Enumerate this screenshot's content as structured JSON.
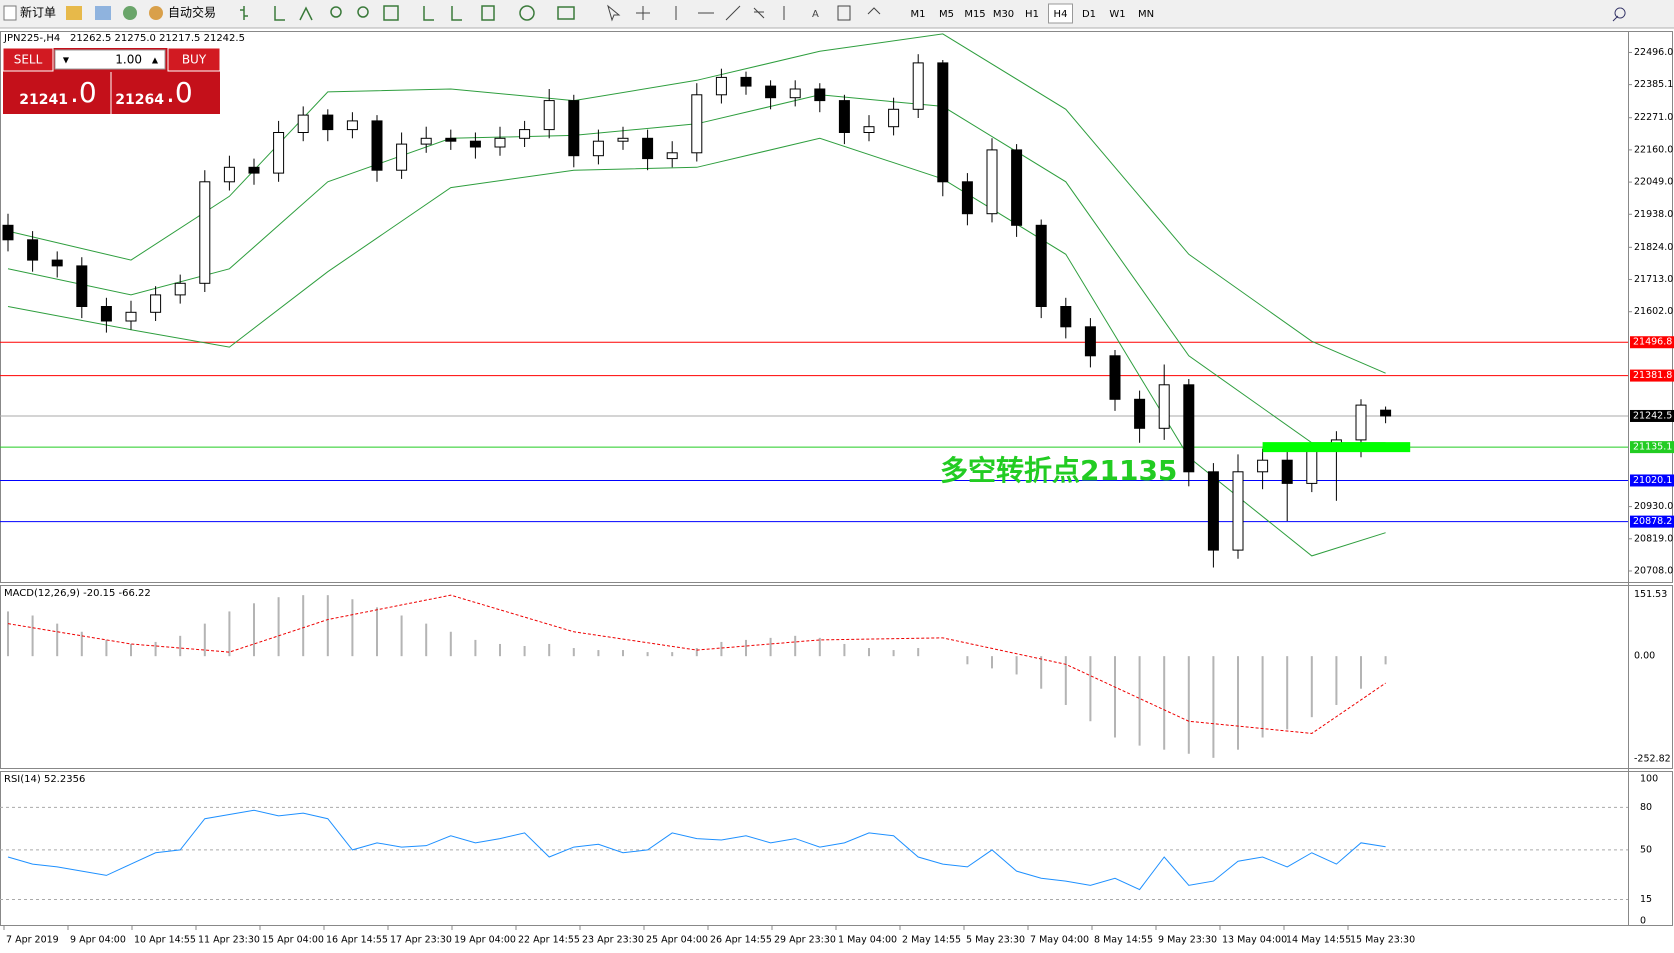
{
  "toolbar": {
    "new_order": "新订单",
    "auto_trading": "自动交易",
    "timeframes": [
      "M1",
      "M5",
      "M15",
      "M30",
      "H1",
      "H4",
      "D1",
      "W1",
      "MN"
    ],
    "active": "H4"
  },
  "trade_panel": {
    "sell": "SELL",
    "buy": "BUY",
    "lots": "1.00",
    "bid_big": "21241",
    "bid_small": ".0",
    "ask_big": "21264",
    "ask_small": ".0"
  },
  "chart_data": {
    "type": "candlestick",
    "symbol": "JPN225-,H4",
    "ohlc_label": "21262.5 21275.0 21217.5 21242.5",
    "open": [
      21900,
      21850,
      21780,
      21760,
      21620,
      21570,
      21600,
      21660,
      21700,
      22050,
      22100,
      22080,
      22220,
      22280,
      22230,
      22260,
      22090,
      22180,
      22200,
      22190,
      22170,
      22200,
      22230,
      22330,
      22140,
      22190,
      22200,
      22130,
      22150,
      22350,
      22410,
      22380,
      22340,
      22370,
      22330,
      22220,
      22240,
      22300,
      22460,
      22050,
      21940,
      22160,
      21900,
      21620,
      21550,
      21450,
      21300,
      21200,
      21350,
      21050,
      20780,
      21050,
      21090,
      21010,
      21120,
      21160,
      21262.5
    ],
    "high": [
      21940,
      21880,
      21810,
      21790,
      21650,
      21640,
      21690,
      21730,
      22090,
      22140,
      22130,
      22260,
      22310,
      22300,
      22290,
      22280,
      22220,
      22240,
      22230,
      22220,
      22240,
      22260,
      22370,
      22350,
      22230,
      22240,
      22230,
      22190,
      22390,
      22440,
      22430,
      22400,
      22400,
      22390,
      22350,
      22280,
      22340,
      22490,
      22470,
      22080,
      22200,
      22180,
      21920,
      21650,
      21580,
      21470,
      21330,
      21420,
      21370,
      21080,
      21110,
      21130,
      21120,
      21150,
      21190,
      21300,
      21275
    ],
    "low": [
      21810,
      21740,
      21720,
      21580,
      21530,
      21540,
      21570,
      21630,
      21670,
      22020,
      22040,
      22050,
      22190,
      22190,
      22200,
      22050,
      22060,
      22150,
      22160,
      22130,
      22140,
      22170,
      22200,
      22100,
      22110,
      22160,
      22090,
      22100,
      22120,
      22320,
      22350,
      22300,
      22310,
      22290,
      22180,
      22190,
      22210,
      22270,
      22000,
      21900,
      21910,
      21860,
      21580,
      21510,
      21410,
      21260,
      21150,
      21160,
      21000,
      20720,
      20750,
      20990,
      20880,
      20980,
      20950,
      21100,
      21217.5
    ],
    "close": [
      21850,
      21780,
      21760,
      21620,
      21570,
      21600,
      21660,
      21700,
      22050,
      22100,
      22080,
      22220,
      22280,
      22230,
      22260,
      22090,
      22180,
      22200,
      22190,
      22170,
      22200,
      22230,
      22330,
      22140,
      22190,
      22200,
      22130,
      22150,
      22350,
      22410,
      22380,
      22340,
      22370,
      22330,
      22220,
      22240,
      22300,
      22460,
      22050,
      21940,
      22160,
      21900,
      21620,
      21550,
      21450,
      21300,
      21200,
      21350,
      21050,
      20780,
      21050,
      21090,
      21010,
      21120,
      21160,
      21280,
      21242.5
    ],
    "bands": {
      "x": [
        0,
        5,
        9,
        13,
        18,
        23,
        28,
        33,
        38,
        43,
        48,
        53,
        56
      ],
      "color": "#2e9e3e",
      "upper": [
        21880,
        21780,
        22000,
        22360,
        22370,
        22330,
        22400,
        22500,
        22560,
        22300,
        21800,
        21500,
        21390
      ],
      "middle": [
        21750,
        21660,
        21750,
        22050,
        22200,
        22210,
        22250,
        22350,
        22310,
        22050,
        21450,
        21150,
        21150
      ],
      "lower": [
        21620,
        21540,
        21480,
        21740,
        22030,
        22090,
        22100,
        22200,
        22060,
        21800,
        21100,
        20760,
        20840
      ]
    },
    "ylim": [
      20670,
      22570
    ],
    "yticks": [
      {
        "value": 22496,
        "label": "22496.0"
      },
      22385.1,
      {
        "value": 22271,
        "label": "22271.0"
      },
      {
        "value": 22160,
        "label": "22160.0"
      },
      {
        "value": 22049,
        "label": "22049.0"
      },
      {
        "value": 21938,
        "label": "21938.0"
      },
      {
        "value": 21824,
        "label": "21824.0"
      },
      {
        "value": 21713,
        "label": "21713.0"
      },
      {
        "value": 21602,
        "label": "21602.0"
      },
      {
        "value": 20930,
        "label": "20930.0"
      },
      {
        "value": 20819,
        "label": "20819.0"
      },
      {
        "value": 20708,
        "label": "20708.0"
      }
    ],
    "levels": [
      {
        "value": 21496.8,
        "color": "#ff0000"
      },
      {
        "value": 21381.8,
        "color": "#ff0000"
      },
      {
        "value": 21135.1,
        "color": "#22cc22"
      },
      {
        "value": 21020.1,
        "color": "#0000ff"
      },
      {
        "value": 20878.2,
        "color": "#0000ff"
      }
    ],
    "current": 21242.5,
    "annotation": "多空转折点21135",
    "x_labels": [
      "7 Apr 2019",
      "9 Apr 04:00",
      "10 Apr 14:55",
      "11 Apr 23:30",
      "15 Apr 04:00",
      "16 Apr 14:55",
      "17 Apr 23:30",
      "19 Apr 04:00",
      "22 Apr 14:55",
      "23 Apr 23:30",
      "25 Apr 04:00",
      "26 Apr 14:55",
      "29 Apr 23:30",
      "1 May 04:00",
      "2 May 14:55",
      "5 May 23:30",
      "7 May 04:00",
      "8 May 14:55",
      "9 May 23:30",
      "13 May 04:00",
      "14 May 14:55",
      "15 May 23:30"
    ],
    "macd": {
      "title": "MACD(12,26,9) -20.15 -66.22",
      "ylim": [
        -275,
        175
      ],
      "yticks": [
        151.53,
        {
          "value": 0,
          "label": "0.00"
        },
        -252.82
      ],
      "histogram": [
        110,
        100,
        80,
        60,
        40,
        30,
        35,
        50,
        80,
        110,
        130,
        145,
        150,
        150,
        140,
        120,
        100,
        80,
        60,
        40,
        30,
        25,
        30,
        20,
        15,
        15,
        10,
        10,
        20,
        35,
        40,
        45,
        50,
        45,
        30,
        20,
        15,
        20,
        0,
        -20,
        -30,
        -45,
        -80,
        -120,
        -160,
        -200,
        -220,
        -230,
        -240,
        -250,
        -230,
        -200,
        -180,
        -150,
        -120,
        -80,
        -20.15
      ],
      "signal_x": [
        0,
        5,
        9,
        13,
        18,
        23,
        28,
        33,
        38,
        43,
        48,
        53,
        56
      ],
      "signal": [
        80,
        30,
        10,
        90,
        150,
        60,
        15,
        40,
        45,
        -20,
        -160,
        -190,
        -66.22
      ]
    },
    "rsi": {
      "title": "RSI(14) 52.2356",
      "ylim": [
        -3,
        105
      ],
      "yticks": [
        100,
        80,
        50,
        15,
        0
      ],
      "levels": [
        80,
        50,
        15
      ],
      "values": [
        45,
        40,
        38,
        35,
        32,
        40,
        48,
        50,
        72,
        75,
        78,
        74,
        76,
        72,
        50,
        55,
        52,
        53,
        60,
        55,
        58,
        62,
        45,
        52,
        54,
        48,
        50,
        62,
        58,
        57,
        60,
        55,
        58,
        52,
        55,
        62,
        60,
        45,
        40,
        38,
        50,
        35,
        30,
        28,
        25,
        30,
        22,
        45,
        25,
        28,
        42,
        45,
        38,
        48,
        40,
        55,
        52.2356
      ]
    }
  }
}
